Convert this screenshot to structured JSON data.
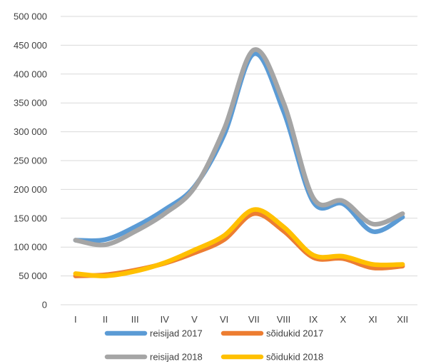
{
  "chart_data": {
    "type": "line",
    "categories": [
      "I",
      "II",
      "III",
      "IV",
      "V",
      "VI",
      "VII",
      "VIII",
      "IX",
      "X",
      "XI",
      "XII"
    ],
    "y_tick_labels": [
      "0",
      "50 000",
      "100 000",
      "150 000",
      "200 000",
      "250 000",
      "300 000",
      "350 000",
      "400 000",
      "450 000",
      "500 000"
    ],
    "ylim": [
      0,
      500000
    ],
    "y_tick_step": 50000,
    "grid": true,
    "legend_position": "bottom",
    "series": [
      {
        "name": "reisijad 2017",
        "color": "#5b9bd5",
        "values": [
          112000,
          113000,
          135000,
          165000,
          205000,
          295000,
          435000,
          335000,
          178000,
          175000,
          127000,
          152000
        ]
      },
      {
        "name": "sõidukid 2017",
        "color": "#ed7d31",
        "values": [
          50000,
          52000,
          60000,
          72000,
          90000,
          113000,
          158000,
          128000,
          82000,
          80000,
          64000,
          67000
        ]
      },
      {
        "name": "reisijad 2018",
        "color": "#a5a5a5",
        "values": [
          112000,
          104000,
          127000,
          158000,
          203000,
          305000,
          442000,
          350000,
          185000,
          180000,
          140000,
          158000
        ]
      },
      {
        "name": "sõidukid 2018",
        "color": "#ffc000",
        "values": [
          54000,
          50000,
          58000,
          73000,
          95000,
          120000,
          165000,
          135000,
          86000,
          84000,
          70000,
          70000
        ]
      }
    ]
  }
}
